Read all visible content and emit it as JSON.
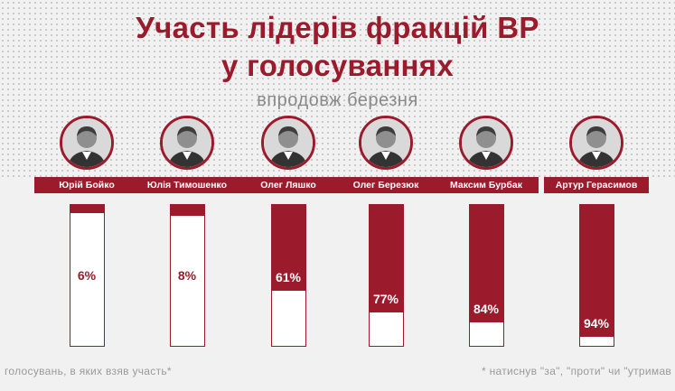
{
  "header": {
    "title_line1": "Участь лідерів фракцій ВР",
    "title_line2": "у голосуваннях",
    "subtitle": "впродовж березня"
  },
  "chart_data": {
    "type": "bar",
    "unit": "%",
    "ylim": [
      0,
      100
    ],
    "categories": [
      "Юрій Бойко",
      "Юлія Тимошенко",
      "Олег Ляшко",
      "Олег Березюк",
      "Максим Бурбак",
      "Артур Герасимов"
    ],
    "values": [
      6,
      8,
      61,
      77,
      84,
      94
    ],
    "labels": [
      "6%",
      "8%",
      "61%",
      "77%",
      "84%",
      "94%"
    ],
    "icons": [
      "person-photo-icon",
      "person-photo-icon",
      "person-photo-icon",
      "person-photo-icon",
      "person-photo-icon",
      "person-photo-icon"
    ]
  },
  "footnotes": {
    "left": "голосувань, в яких взяв участь*",
    "right": "* натиснув \"за\", \"проти\" чи \"утримав"
  },
  "colors": {
    "accent": "#9b1b2c",
    "bar_empty": "#ffffff",
    "muted_text": "#9a9a9a",
    "background": "#f1f1f1"
  }
}
